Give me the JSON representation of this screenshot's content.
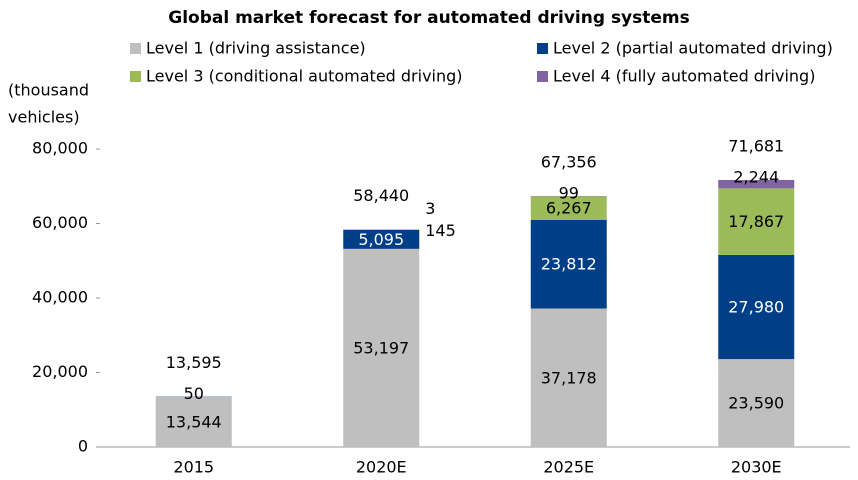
{
  "chart_data": {
    "type": "stacked_bar",
    "title": "Global market forecast for automated driving systems",
    "y_label": [
      "(thousand",
      "vehicles)"
    ],
    "categories": [
      "2015",
      "2020E",
      "2025E",
      "2030E"
    ],
    "series": [
      {
        "name": "Level 1 (driving assistance)",
        "color": "#bfbfbf",
        "values": [
          13544,
          53197,
          37178,
          23590
        ],
        "value_labels": [
          "13,544",
          "53,197",
          "37,178",
          "23,590"
        ]
      },
      {
        "name": "Level 2 (partial automated driving)",
        "color": "#003f87",
        "values": [
          50,
          5095,
          23812,
          27980
        ],
        "value_labels": [
          "50",
          "5,095",
          "23,812",
          "27,980"
        ]
      },
      {
        "name": "Level 3 (conditional automated driving)",
        "color": "#9bbb59",
        "values": [
          null,
          145,
          6267,
          17867
        ],
        "value_labels": [
          null,
          "145",
          "6,267",
          "17,867"
        ]
      },
      {
        "name": "Level 4 (fully automated driving)",
        "color": "#8064a2",
        "values": [
          null,
          3,
          99,
          2244
        ],
        "value_labels": [
          null,
          "3",
          "99",
          "2,244"
        ]
      }
    ],
    "totals": [
      13595,
      58440,
      67356,
      71681
    ],
    "total_labels": [
      "13,595",
      "58,440",
      "67,356",
      "71,681"
    ],
    "ylim": [
      0,
      80000
    ],
    "yticks": [
      0,
      {
        "value": 20000,
        "label": "20,000"
      },
      {
        "value": 40000,
        "label": "40,000"
      },
      {
        "value": 60000,
        "label": "60,000"
      },
      {
        "value": 80000,
        "label": "80,000"
      }
    ]
  }
}
